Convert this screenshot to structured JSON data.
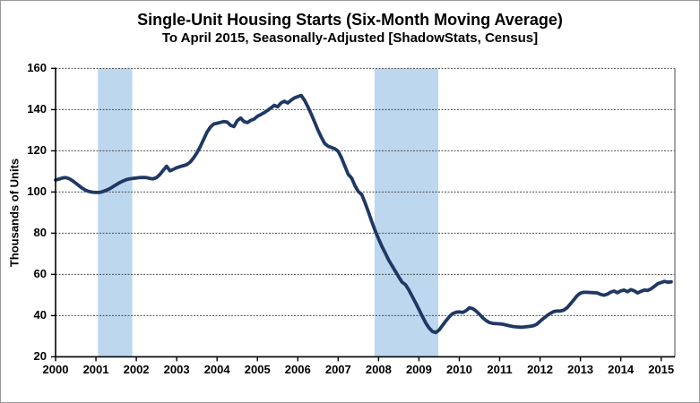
{
  "page": {
    "title": "Single-Unit Housing Starts (Six-Month Moving Average)",
    "subtitle": "To April 2015, Seasonally-Adjusted [ShadowStats, Census]"
  },
  "chart_data": {
    "type": "line",
    "title": "Single-Unit Housing Starts (Six-Month Moving Average)",
    "subtitle": "To April 2015, Seasonally-Adjusted [ShadowStats, Census]",
    "xlabel": "",
    "ylabel": "Thousands of Units",
    "ylim": [
      20,
      160
    ],
    "xlim": [
      2000,
      2015.34
    ],
    "yticks": [
      20,
      40,
      60,
      80,
      100,
      120,
      140,
      160
    ],
    "xticks": [
      2000,
      2001,
      2002,
      2003,
      2004,
      2005,
      2006,
      2007,
      2008,
      2009,
      2010,
      2011,
      2012,
      2013,
      2014,
      2015
    ],
    "grid": "horizontal",
    "legend": "none",
    "line_color": "#1f3864",
    "band_color": "#bdd7ee",
    "recession_bands": [
      {
        "start": 2001.05,
        "end": 2001.9
      },
      {
        "start": 2007.9,
        "end": 2009.48
      }
    ],
    "series": [
      {
        "name": "Single-unit housing starts, six-month moving average (thousands of units)",
        "frequency": "monthly",
        "start_year": 2000,
        "start_month": 1,
        "end_year": 2015,
        "end_month": 4,
        "values": [
          105.8,
          106.3,
          106.8,
          107.0,
          106.5,
          105.5,
          104.3,
          103.0,
          101.8,
          100.8,
          100.2,
          99.9,
          99.8,
          99.8,
          100.2,
          100.8,
          101.5,
          102.5,
          103.5,
          104.5,
          105.3,
          106.0,
          106.4,
          106.6,
          106.8,
          107.0,
          107.1,
          107.0,
          106.6,
          106.4,
          107.0,
          108.5,
          110.5,
          112.5,
          110.3,
          111.0,
          111.8,
          112.3,
          112.8,
          113.3,
          114.5,
          116.5,
          119.0,
          122.0,
          125.5,
          129.0,
          131.5,
          133.0,
          133.4,
          133.8,
          134.2,
          134.0,
          132.4,
          131.8,
          134.6,
          135.9,
          134.2,
          133.7,
          134.8,
          135.4,
          136.8,
          137.6,
          138.5,
          139.6,
          140.8,
          142.1,
          141.4,
          143.2,
          144.1,
          143.2,
          144.6,
          145.7,
          146.3,
          146.9,
          144.5,
          141.4,
          137.8,
          134.0,
          130.0,
          126.5,
          123.5,
          122.2,
          121.6,
          121.0,
          119.8,
          116.5,
          112.5,
          108.5,
          106.8,
          103.0,
          100.2,
          98.8,
          94.8,
          90.2,
          85.5,
          81.2,
          77.2,
          73.6,
          70.3,
          67.0,
          64.2,
          61.5,
          58.8,
          56.2,
          55.0,
          52.5,
          49.3,
          46.2,
          43.0,
          39.6,
          36.5,
          34.0,
          32.3,
          31.8,
          33.0,
          35.2,
          37.4,
          39.4,
          40.9,
          41.6,
          41.8,
          41.5,
          42.4,
          43.8,
          43.4,
          42.2,
          40.6,
          38.9,
          37.5,
          36.6,
          36.2,
          36.1,
          36.0,
          35.8,
          35.4,
          35.0,
          34.7,
          34.5,
          34.4,
          34.4,
          34.6,
          34.8,
          35.1,
          35.8,
          37.2,
          38.6,
          39.9,
          41.0,
          41.9,
          42.2,
          42.2,
          42.6,
          43.8,
          45.6,
          47.6,
          49.6,
          50.9,
          51.3,
          51.3,
          51.2,
          51.1,
          51.0,
          50.3,
          49.9,
          50.4,
          51.4,
          51.9,
          51.1,
          52.0,
          52.4,
          51.6,
          52.6,
          52.0,
          51.0,
          51.8,
          52.4,
          52.2,
          53.0,
          54.2,
          55.5,
          56.1,
          56.6,
          56.2,
          56.4
        ]
      }
    ]
  }
}
